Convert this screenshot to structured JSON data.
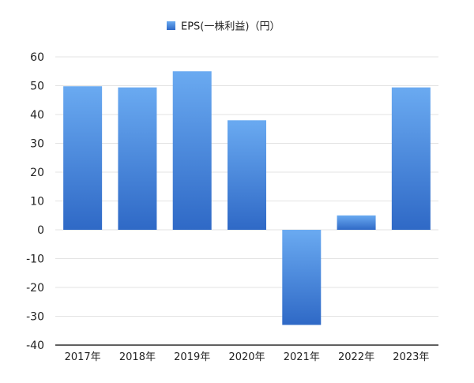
{
  "chart_data": {
    "type": "bar",
    "categories": [
      "2017年",
      "2018年",
      "2019年",
      "2020年",
      "2021年",
      "2022年",
      "2023年"
    ],
    "series": [
      {
        "name": "EPS(一株利益)（円）",
        "values": [
          49.8,
          49.4,
          55.0,
          38.0,
          -33.0,
          5.0,
          49.4
        ]
      }
    ],
    "ylim": [
      -40,
      60
    ],
    "yticks": [
      -40,
      -30,
      -20,
      -10,
      0,
      10,
      20,
      30,
      40,
      50,
      60
    ],
    "grid": true,
    "legend": "top-center"
  },
  "colors": {
    "bar_top": "#6aaaf1",
    "bar_bottom": "#2f69c6",
    "grid": "#e3e3e3",
    "axis": "#000000",
    "text": "#222222"
  }
}
